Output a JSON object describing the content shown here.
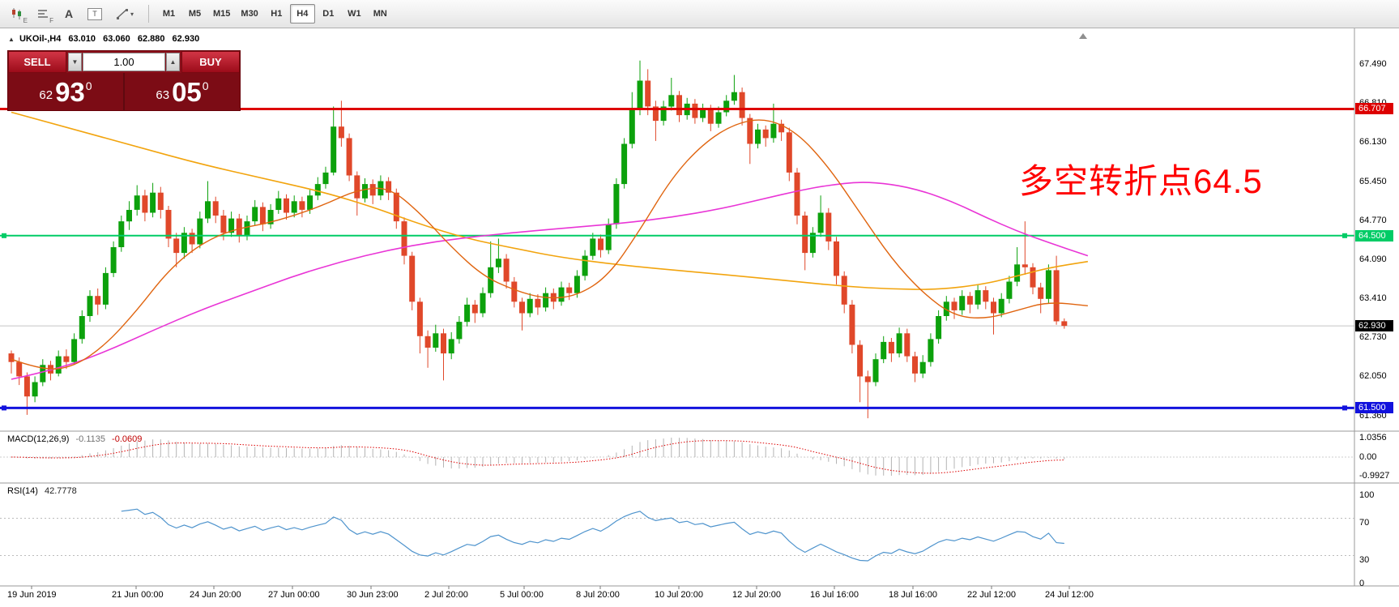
{
  "toolbar": {
    "icon_names": [
      "chart-type-icon",
      "indicator-window-icon",
      "insert-text-icon",
      "text-label-icon",
      "drawing-tools-icon"
    ],
    "icon_glyphs": {
      "candle_sub": "E",
      "bars_sub": "F",
      "text_tool": "A",
      "label_tool": "T",
      "dropdown": "▾"
    },
    "timeframes": [
      "M1",
      "M5",
      "M15",
      "M30",
      "H1",
      "H4",
      "D1",
      "W1",
      "MN"
    ],
    "active_timeframe": "H4"
  },
  "chart_header": {
    "marker": "▲",
    "symbol": "UKOil-,H4",
    "open": "63.010",
    "high": "63.060",
    "low": "62.880",
    "close": "62.930"
  },
  "trade_panel": {
    "sell_label": "SELL",
    "buy_label": "BUY",
    "volume": "1.00",
    "volume_down_glyph": "▼",
    "volume_up_glyph": "▲",
    "sell_price": {
      "small": "62",
      "big": "93",
      "sup": "0"
    },
    "buy_price": {
      "small": "63",
      "big": "05",
      "sup": "0"
    }
  },
  "annotation": {
    "text": "多空转折点64.5",
    "color": "#ff0000"
  },
  "colors": {
    "bull": "#0ca10c",
    "bear": "#e0482a",
    "ma_fast": "#e06510",
    "ma_slow": "#f2a40e",
    "ma_magenta": "#e935d6",
    "hline_red": "#dd0000",
    "hline_green": "#00cc66",
    "hline_blue": "#1212dd",
    "current_black": "#000000",
    "macd_hist": "#b4b4b4",
    "macd_signal": "#dd0000",
    "rsi_line": "#4f94cd"
  },
  "price_axis": {
    "labels": [
      "67.490",
      "66.810",
      "66.130",
      "65.450",
      "64.770",
      "64.090",
      "63.410",
      "62.730",
      "62.050",
      "61.360"
    ],
    "tags": [
      {
        "value": "66.707",
        "price": 66.707,
        "color_key": "hline_red"
      },
      {
        "value": "64.500",
        "price": 64.5,
        "color_key": "hline_green"
      },
      {
        "value": "62.930",
        "price": 62.93,
        "color_key": "current_black"
      },
      {
        "value": "61.500",
        "price": 61.5,
        "color_key": "hline_blue"
      }
    ]
  },
  "macd_panel": {
    "title": "MACD(12,26,9)",
    "value_main": "-0.1135",
    "value_signal": "-0.0609",
    "axis_labels": [
      "1.0356",
      "0.00",
      "-0.9927"
    ]
  },
  "rsi_panel": {
    "title": "RSI(14)",
    "value": "42.7778",
    "axis_labels": [
      "100",
      "70",
      "30",
      "0"
    ],
    "levels": [
      70,
      30
    ]
  },
  "time_axis": [
    "19 Jun 2019",
    "21 Jun 00:00",
    "24 Jun 20:00",
    "27 Jun 00:00",
    "30 Jun 23:00",
    "2 Jul 20:00",
    "5 Jul 00:00",
    "8 Jul 20:00",
    "10 Jul 20:00",
    "12 Jul 20:00",
    "16 Jul 16:00",
    "18 Jul 16:00",
    "22 Jul 12:00",
    "24 Jul 12:00"
  ],
  "chart_data": {
    "type": "candlestick",
    "symbol": "UKOil-",
    "timeframe": "H4",
    "price_range": [
      61.1,
      68.1
    ],
    "current_price": 62.93,
    "time_label_x": [
      9,
      138,
      234,
      331,
      428,
      524,
      617,
      711,
      808,
      904,
      1000,
      1097,
      1194,
      1290
    ],
    "hlines": [
      {
        "price": 66.707,
        "color_key": "hline_red",
        "width": 3,
        "handles": []
      },
      {
        "price": 64.5,
        "color_key": "hline_green",
        "width": 2,
        "handles": [
          5,
          1660
        ]
      },
      {
        "price": 61.5,
        "color_key": "hline_blue",
        "width": 3,
        "handles": [
          5,
          1660
        ]
      }
    ],
    "candles": [
      [
        62.45,
        62.5,
        62.1,
        62.3
      ],
      [
        62.3,
        62.38,
        61.9,
        62.05
      ],
      [
        62.05,
        62.12,
        61.38,
        61.7
      ],
      [
        61.7,
        62.05,
        61.6,
        61.95
      ],
      [
        61.95,
        62.35,
        61.88,
        62.25
      ],
      [
        62.25,
        62.32,
        61.98,
        62.1
      ],
      [
        62.1,
        62.5,
        62.05,
        62.4
      ],
      [
        62.4,
        62.52,
        62.18,
        62.3
      ],
      [
        62.3,
        62.8,
        62.25,
        62.7
      ],
      [
        62.7,
        63.2,
        62.62,
        63.1
      ],
      [
        63.1,
        63.55,
        63.0,
        63.45
      ],
      [
        63.45,
        63.58,
        63.12,
        63.3
      ],
      [
        63.3,
        63.95,
        63.22,
        63.85
      ],
      [
        63.85,
        64.4,
        63.78,
        64.3
      ],
      [
        64.3,
        64.85,
        64.22,
        64.75
      ],
      [
        64.75,
        65.1,
        64.6,
        64.95
      ],
      [
        64.95,
        65.38,
        64.85,
        65.2
      ],
      [
        65.2,
        65.3,
        64.75,
        64.9
      ],
      [
        64.9,
        65.42,
        64.82,
        65.25
      ],
      [
        65.25,
        65.35,
        64.8,
        64.95
      ],
      [
        64.95,
        65.02,
        64.3,
        64.45
      ],
      [
        64.45,
        64.55,
        63.95,
        64.2
      ],
      [
        64.2,
        64.65,
        64.1,
        64.55
      ],
      [
        64.55,
        64.62,
        64.2,
        64.35
      ],
      [
        64.35,
        64.92,
        64.28,
        64.8
      ],
      [
        64.8,
        65.45,
        64.72,
        65.1
      ],
      [
        65.1,
        65.18,
        64.72,
        64.85
      ],
      [
        64.85,
        64.95,
        64.42,
        64.55
      ],
      [
        64.55,
        64.92,
        64.48,
        64.8
      ],
      [
        64.8,
        64.88,
        64.38,
        64.5
      ],
      [
        64.5,
        64.85,
        64.42,
        64.75
      ],
      [
        64.75,
        65.12,
        64.68,
        65.0
      ],
      [
        65.0,
        65.08,
        64.58,
        64.7
      ],
      [
        64.7,
        65.05,
        64.62,
        64.95
      ],
      [
        64.95,
        65.28,
        64.88,
        65.15
      ],
      [
        65.15,
        65.22,
        64.78,
        64.9
      ],
      [
        64.9,
        65.2,
        64.82,
        65.1
      ],
      [
        65.1,
        65.18,
        64.82,
        64.95
      ],
      [
        64.95,
        65.3,
        64.88,
        65.2
      ],
      [
        65.2,
        65.52,
        65.12,
        65.4
      ],
      [
        65.4,
        65.7,
        65.32,
        65.6
      ],
      [
        65.6,
        66.75,
        65.55,
        66.4
      ],
      [
        66.4,
        66.85,
        66.05,
        66.2
      ],
      [
        66.2,
        66.28,
        65.45,
        65.55
      ],
      [
        65.55,
        65.62,
        64.85,
        65.15
      ],
      [
        65.15,
        65.5,
        65.08,
        65.4
      ],
      [
        65.4,
        65.48,
        65.05,
        65.2
      ],
      [
        65.2,
        65.55,
        65.12,
        65.45
      ],
      [
        65.45,
        65.52,
        65.12,
        65.25
      ],
      [
        65.25,
        65.32,
        64.62,
        64.75
      ],
      [
        64.75,
        64.82,
        64.0,
        64.15
      ],
      [
        64.15,
        64.22,
        63.2,
        63.35
      ],
      [
        63.35,
        63.42,
        62.45,
        62.75
      ],
      [
        62.75,
        62.85,
        62.2,
        62.55
      ],
      [
        62.55,
        62.95,
        62.48,
        62.8
      ],
      [
        62.8,
        62.88,
        61.98,
        62.45
      ],
      [
        62.45,
        62.82,
        62.35,
        62.7
      ],
      [
        62.7,
        63.1,
        62.62,
        63.0
      ],
      [
        63.0,
        63.42,
        62.92,
        63.3
      ],
      [
        63.3,
        63.38,
        62.98,
        63.15
      ],
      [
        63.15,
        63.6,
        63.08,
        63.5
      ],
      [
        63.5,
        64.4,
        63.42,
        63.95
      ],
      [
        63.95,
        64.45,
        63.85,
        64.1
      ],
      [
        64.1,
        64.18,
        63.58,
        63.7
      ],
      [
        63.7,
        63.78,
        63.25,
        63.35
      ],
      [
        63.35,
        63.42,
        62.85,
        63.15
      ],
      [
        63.15,
        63.5,
        63.08,
        63.4
      ],
      [
        63.4,
        63.48,
        63.12,
        63.25
      ],
      [
        63.25,
        63.6,
        63.18,
        63.5
      ],
      [
        63.5,
        63.58,
        63.22,
        63.35
      ],
      [
        63.35,
        63.7,
        63.28,
        63.6
      ],
      [
        63.6,
        63.68,
        63.38,
        63.5
      ],
      [
        63.5,
        63.9,
        63.42,
        63.8
      ],
      [
        63.8,
        64.25,
        63.72,
        64.15
      ],
      [
        64.15,
        64.55,
        64.08,
        64.45
      ],
      [
        64.45,
        64.52,
        64.12,
        64.25
      ],
      [
        64.25,
        64.8,
        64.18,
        64.7
      ],
      [
        64.7,
        65.5,
        64.62,
        65.4
      ],
      [
        65.4,
        66.2,
        65.32,
        66.1
      ],
      [
        66.1,
        67.0,
        66.02,
        66.7
      ],
      [
        66.7,
        67.55,
        66.6,
        67.2
      ],
      [
        67.2,
        67.4,
        66.6,
        66.75
      ],
      [
        66.75,
        66.85,
        66.15,
        66.5
      ],
      [
        66.5,
        66.85,
        66.42,
        66.75
      ],
      [
        66.75,
        67.25,
        66.68,
        66.95
      ],
      [
        66.95,
        67.02,
        66.48,
        66.6
      ],
      [
        66.6,
        66.9,
        66.52,
        66.8
      ],
      [
        66.8,
        66.88,
        66.45,
        66.55
      ],
      [
        66.55,
        66.8,
        66.48,
        66.7
      ],
      [
        66.7,
        66.78,
        66.32,
        66.45
      ],
      [
        66.45,
        66.75,
        66.38,
        66.65
      ],
      [
        66.65,
        66.95,
        66.58,
        66.85
      ],
      [
        66.85,
        67.3,
        66.78,
        67.0
      ],
      [
        67.0,
        67.08,
        66.42,
        66.55
      ],
      [
        66.55,
        66.62,
        65.75,
        66.1
      ],
      [
        66.1,
        66.45,
        66.02,
        66.35
      ],
      [
        66.35,
        66.42,
        66.05,
        66.2
      ],
      [
        66.2,
        66.8,
        66.12,
        66.45
      ],
      [
        66.45,
        66.52,
        66.15,
        66.3
      ],
      [
        66.3,
        66.38,
        65.45,
        65.6
      ],
      [
        65.6,
        65.68,
        64.7,
        64.85
      ],
      [
        64.85,
        64.92,
        63.9,
        64.2
      ],
      [
        64.2,
        64.65,
        64.12,
        64.55
      ],
      [
        64.55,
        65.2,
        64.48,
        64.9
      ],
      [
        64.9,
        64.98,
        64.25,
        64.4
      ],
      [
        64.4,
        64.48,
        63.65,
        63.8
      ],
      [
        63.8,
        63.88,
        63.15,
        63.3
      ],
      [
        63.3,
        63.38,
        62.45,
        62.6
      ],
      [
        62.6,
        62.68,
        61.6,
        62.05
      ],
      [
        62.05,
        62.15,
        61.32,
        61.95
      ],
      [
        61.95,
        62.45,
        61.88,
        62.35
      ],
      [
        62.35,
        62.75,
        62.28,
        62.65
      ],
      [
        62.65,
        62.72,
        62.3,
        62.45
      ],
      [
        62.45,
        62.9,
        62.38,
        62.8
      ],
      [
        62.8,
        62.88,
        62.3,
        62.4
      ],
      [
        62.4,
        62.48,
        61.95,
        62.1
      ],
      [
        62.1,
        62.42,
        62.02,
        62.3
      ],
      [
        62.3,
        62.8,
        62.22,
        62.7
      ],
      [
        62.7,
        63.2,
        62.62,
        63.1
      ],
      [
        63.1,
        63.45,
        63.02,
        63.35
      ],
      [
        63.35,
        63.42,
        63.05,
        63.2
      ],
      [
        63.2,
        63.55,
        63.12,
        63.45
      ],
      [
        63.45,
        63.52,
        63.15,
        63.3
      ],
      [
        63.3,
        63.65,
        63.22,
        63.55
      ],
      [
        63.55,
        63.62,
        63.22,
        63.35
      ],
      [
        63.35,
        63.42,
        62.78,
        63.15
      ],
      [
        63.15,
        63.5,
        63.08,
        63.4
      ],
      [
        63.4,
        63.8,
        63.32,
        63.7
      ],
      [
        63.7,
        64.3,
        63.62,
        64.0
      ],
      [
        64.0,
        64.75,
        63.82,
        63.95
      ],
      [
        63.95,
        64.02,
        63.48,
        63.6
      ],
      [
        63.6,
        63.68,
        63.15,
        63.4
      ],
      [
        63.4,
        64.0,
        63.32,
        63.9
      ],
      [
        63.9,
        64.15,
        62.95,
        63.01
      ],
      [
        63.01,
        63.06,
        62.88,
        62.93
      ]
    ],
    "ma_slow": [
      [
        0,
        66.65
      ],
      [
        8,
        66.35
      ],
      [
        16,
        66.05
      ],
      [
        24,
        65.75
      ],
      [
        32,
        65.5
      ],
      [
        40,
        65.25
      ],
      [
        46,
        65.0
      ],
      [
        52,
        64.7
      ],
      [
        58,
        64.45
      ],
      [
        64,
        64.28
      ],
      [
        70,
        64.12
      ],
      [
        78,
        63.98
      ],
      [
        86,
        63.88
      ],
      [
        94,
        63.78
      ],
      [
        100,
        63.7
      ],
      [
        106,
        63.62
      ],
      [
        112,
        63.57
      ],
      [
        118,
        63.56
      ],
      [
        124,
        63.66
      ],
      [
        128,
        63.8
      ],
      [
        132,
        63.94
      ],
      [
        137,
        64.05
      ]
    ],
    "ma_magenta": [
      [
        0,
        62.0
      ],
      [
        6,
        62.18
      ],
      [
        12,
        62.48
      ],
      [
        18,
        62.85
      ],
      [
        24,
        63.2
      ],
      [
        30,
        63.5
      ],
      [
        36,
        63.8
      ],
      [
        42,
        64.05
      ],
      [
        48,
        64.25
      ],
      [
        54,
        64.4
      ],
      [
        60,
        64.5
      ],
      [
        66,
        64.58
      ],
      [
        72,
        64.65
      ],
      [
        78,
        64.72
      ],
      [
        84,
        64.82
      ],
      [
        90,
        64.96
      ],
      [
        96,
        65.15
      ],
      [
        100,
        65.28
      ],
      [
        104,
        65.38
      ],
      [
        108,
        65.44
      ],
      [
        112,
        65.4
      ],
      [
        116,
        65.28
      ],
      [
        120,
        65.08
      ],
      [
        124,
        64.82
      ],
      [
        128,
        64.58
      ],
      [
        132,
        64.38
      ],
      [
        137,
        64.15
      ]
    ],
    "ma_fast": [
      [
        0,
        62.35
      ],
      [
        4,
        62.15
      ],
      [
        8,
        62.22
      ],
      [
        12,
        62.6
      ],
      [
        16,
        63.2
      ],
      [
        20,
        63.9
      ],
      [
        24,
        64.35
      ],
      [
        28,
        64.6
      ],
      [
        32,
        64.7
      ],
      [
        36,
        64.85
      ],
      [
        40,
        65.05
      ],
      [
        44,
        65.3
      ],
      [
        48,
        65.35
      ],
      [
        52,
        64.9
      ],
      [
        56,
        64.3
      ],
      [
        60,
        63.8
      ],
      [
        64,
        63.55
      ],
      [
        68,
        63.4
      ],
      [
        72,
        63.45
      ],
      [
        76,
        63.8
      ],
      [
        80,
        64.6
      ],
      [
        84,
        65.5
      ],
      [
        88,
        66.1
      ],
      [
        92,
        66.45
      ],
      [
        96,
        66.55
      ],
      [
        100,
        66.3
      ],
      [
        104,
        65.7
      ],
      [
        108,
        64.9
      ],
      [
        112,
        64.1
      ],
      [
        116,
        63.5
      ],
      [
        120,
        63.1
      ],
      [
        124,
        63.05
      ],
      [
        128,
        63.2
      ],
      [
        132,
        63.35
      ],
      [
        137,
        63.28
      ]
    ],
    "macd": {
      "params": [
        12,
        26,
        9
      ],
      "range": [
        -0.9927,
        1.0356
      ]
    },
    "rsi": {
      "period": 14,
      "last": 42.7778
    }
  }
}
